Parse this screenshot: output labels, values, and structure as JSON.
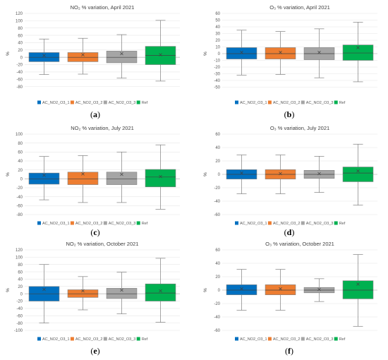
{
  "series_colors": {
    "AC_NO2_O3_1": "#0070C0",
    "AC_NO2_O3_2": "#ED7D31",
    "AC_NO2_O3_3": "#A5A5A5",
    "Ref": "#00B050"
  },
  "legend": [
    "AC_NO2_O3_1",
    "AC_NO2_O3_2",
    "AC_NO2_O3_3",
    "Ref"
  ],
  "chart_data": [
    {
      "id": "a",
      "caption": "a",
      "type": "boxplot",
      "title": "NO₂  % variation, April 2021",
      "ylabel": "%",
      "ylim": [
        -100,
        120
      ],
      "yticks": [
        -80,
        -60,
        -40,
        -20,
        0,
        20,
        40,
        60,
        80,
        100,
        120
      ],
      "series": [
        {
          "name": "AC_NO2_O3_1",
          "min": -47,
          "q1": -12,
          "median": 0,
          "q3": 13,
          "max": 50,
          "mean": 5
        },
        {
          "name": "AC_NO2_O3_2",
          "min": -46,
          "q1": -12,
          "median": 0,
          "q3": 13,
          "max": 52,
          "mean": 7
        },
        {
          "name": "AC_NO2_O3_3",
          "min": -57,
          "q1": -15,
          "median": 0,
          "q3": 17,
          "max": 62,
          "mean": 10
        },
        {
          "name": "Ref",
          "min": -65,
          "q1": -20,
          "median": 5,
          "q3": 30,
          "max": 101,
          "mean": 7
        }
      ]
    },
    {
      "id": "b",
      "caption": "b",
      "type": "boxplot",
      "title": "O₃  % variation, April 2021",
      "ylabel": "%",
      "ylim": [
        -60,
        60
      ],
      "yticks": [
        -50,
        -40,
        -30,
        -20,
        -10,
        0,
        10,
        20,
        30,
        40,
        50,
        60
      ],
      "series": [
        {
          "name": "AC_NO2_O3_1",
          "min": -32,
          "q1": -8,
          "median": 0,
          "q3": 9,
          "max": 35,
          "mean": 2
        },
        {
          "name": "AC_NO2_O3_2",
          "min": -31,
          "q1": -8,
          "median": 0,
          "q3": 9,
          "max": 33,
          "mean": 2
        },
        {
          "name": "AC_NO2_O3_3",
          "min": -36,
          "q1": -9,
          "median": 0,
          "q3": 9,
          "max": 37,
          "mean": 2
        },
        {
          "name": "Ref",
          "min": -42,
          "q1": -10,
          "median": 1,
          "q3": 13,
          "max": 47,
          "mean": 9
        }
      ]
    },
    {
      "id": "c",
      "caption": "c",
      "type": "boxplot",
      "title": "NO₂  % variation, July 2021",
      "ylabel": "%",
      "ylim": [
        -80,
        100
      ],
      "yticks": [
        -80,
        -60,
        -40,
        -20,
        0,
        20,
        40,
        60,
        80,
        100
      ],
      "series": [
        {
          "name": "AC_NO2_O3_1",
          "min": -47,
          "q1": -12,
          "median": 0,
          "q3": 13,
          "max": 50,
          "mean": 8
        },
        {
          "name": "AC_NO2_O3_2",
          "min": -53,
          "q1": -13,
          "median": 0,
          "q3": 15,
          "max": 52,
          "mean": 11
        },
        {
          "name": "AC_NO2_O3_3",
          "min": -53,
          "q1": -13,
          "median": 0,
          "q3": 15,
          "max": 60,
          "mean": 10
        },
        {
          "name": "Ref",
          "min": -68,
          "q1": -18,
          "median": 4,
          "q3": 21,
          "max": 76,
          "mean": 5
        }
      ]
    },
    {
      "id": "d",
      "caption": "d",
      "type": "boxplot",
      "title": "O₃  % variation, July 2021",
      "ylabel": "%",
      "ylim": [
        -60,
        60
      ],
      "yticks": [
        -60,
        -40,
        -20,
        0,
        20,
        40,
        60
      ],
      "series": [
        {
          "name": "AC_NO2_O3_1",
          "min": -29,
          "q1": -7,
          "median": 0,
          "q3": 7,
          "max": 29,
          "mean": 2
        },
        {
          "name": "AC_NO2_O3_2",
          "min": -29,
          "q1": -7,
          "median": 0,
          "q3": 7,
          "max": 29,
          "mean": 1
        },
        {
          "name": "AC_NO2_O3_3",
          "min": -27,
          "q1": -6,
          "median": 0,
          "q3": 6,
          "max": 27,
          "mean": 1
        },
        {
          "name": "Ref",
          "min": -46,
          "q1": -11,
          "median": 2,
          "q3": 11,
          "max": 45,
          "mean": 5
        }
      ]
    },
    {
      "id": "e",
      "caption": "e",
      "type": "boxplot",
      "title": "NO₂  % variation, October 2021",
      "ylabel": "%",
      "ylim": [
        -100,
        120
      ],
      "yticks": [
        -100,
        -80,
        -60,
        -40,
        -20,
        0,
        20,
        40,
        60,
        80,
        100,
        120
      ],
      "series": [
        {
          "name": "AC_NO2_O3_1",
          "min": -80,
          "q1": -20,
          "median": 0,
          "q3": 20,
          "max": 80,
          "mean": 12
        },
        {
          "name": "AC_NO2_O3_2",
          "min": -44,
          "q1": -10,
          "median": 0,
          "q3": 11,
          "max": 47,
          "mean": 8
        },
        {
          "name": "AC_NO2_O3_3",
          "min": -55,
          "q1": -13,
          "median": 0,
          "q3": 15,
          "max": 59,
          "mean": 10
        },
        {
          "name": "Ref",
          "min": -78,
          "q1": -20,
          "median": 2,
          "q3": 27,
          "max": 97,
          "mean": 8
        }
      ]
    },
    {
      "id": "f",
      "caption": "f",
      "type": "boxplot",
      "title": "O₃  % variation, October 2021",
      "ylabel": "%",
      "ylim": [
        -60,
        60
      ],
      "yticks": [
        -60,
        -40,
        -20,
        0,
        20,
        40,
        60
      ],
      "series": [
        {
          "name": "AC_NO2_O3_1",
          "min": -30,
          "q1": -7,
          "median": 0,
          "q3": 8,
          "max": 31,
          "mean": 2
        },
        {
          "name": "AC_NO2_O3_2",
          "min": -30,
          "q1": -7,
          "median": 0,
          "q3": 8,
          "max": 31,
          "mean": 2
        },
        {
          "name": "AC_NO2_O3_3",
          "min": -17,
          "q1": -4,
          "median": 0,
          "q3": 4,
          "max": 17,
          "mean": 1
        },
        {
          "name": "Ref",
          "min": -54,
          "q1": -13,
          "median": 0,
          "q3": 14,
          "max": 53,
          "mean": 9
        }
      ]
    }
  ]
}
